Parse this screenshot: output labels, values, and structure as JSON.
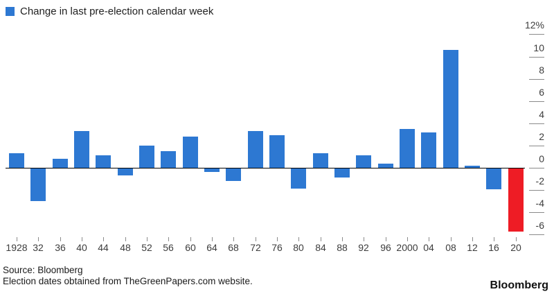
{
  "legend": {
    "label": "Change in last pre-election calendar week"
  },
  "chart_data": {
    "type": "bar",
    "title": "",
    "series_name": "Change in last pre-election calendar week",
    "unit": "%",
    "categories": [
      "1928",
      "32",
      "36",
      "40",
      "44",
      "48",
      "52",
      "56",
      "60",
      "64",
      "68",
      "72",
      "76",
      "80",
      "84",
      "88",
      "92",
      "96",
      "2000",
      "04",
      "08",
      "12",
      "16",
      "20"
    ],
    "values": [
      1.3,
      -2.9,
      0.8,
      3.3,
      1.1,
      -0.6,
      2.0,
      1.5,
      2.8,
      -0.3,
      -1.1,
      3.3,
      2.9,
      -1.8,
      1.3,
      -0.8,
      1.1,
      0.4,
      3.5,
      3.2,
      10.6,
      0.2,
      -1.9,
      -5.7
    ],
    "highlight_index": 23,
    "y_ticks": [
      12,
      10,
      8,
      6,
      4,
      2,
      0,
      -2,
      -4,
      -6
    ],
    "y_tick_labels": [
      "12%",
      "10",
      "8",
      "6",
      "4",
      "2",
      "0",
      "-2",
      "-4",
      "-6"
    ],
    "ylim": [
      -7,
      12.5
    ],
    "xlabel": "",
    "ylabel": "",
    "grid": false,
    "legend_position": "top-left",
    "y_axis_side": "right"
  },
  "colors": {
    "bar_blue": "#2d78d2",
    "bar_red": "#ee1c25",
    "axis_line": "#000000",
    "tick_gray": "#8a8a8a",
    "text_gray": "#3c3c3c"
  },
  "footer": {
    "source": "Source: Bloomberg",
    "note": "Election dates obtained from TheGreenPapers.com website."
  },
  "branding": {
    "logo": "Bloomberg"
  }
}
